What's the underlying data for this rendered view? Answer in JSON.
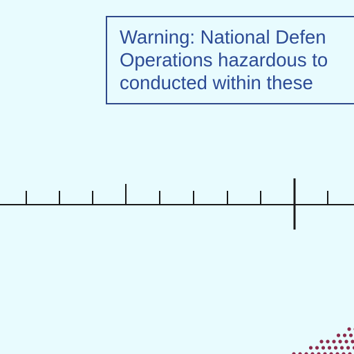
{
  "map": {
    "water_color": "#e8fbfe",
    "warning_notice": {
      "lines": [
        "Warning: National Defen",
        "Operations hazardous to",
        "conducted within these"
      ],
      "text_color": "#2c4b95",
      "border_color": "#2f4a8c"
    },
    "scale_bar": {
      "color": "#1a1a1a"
    },
    "dotted_boundary": {
      "color": "#8b2a4c"
    }
  }
}
